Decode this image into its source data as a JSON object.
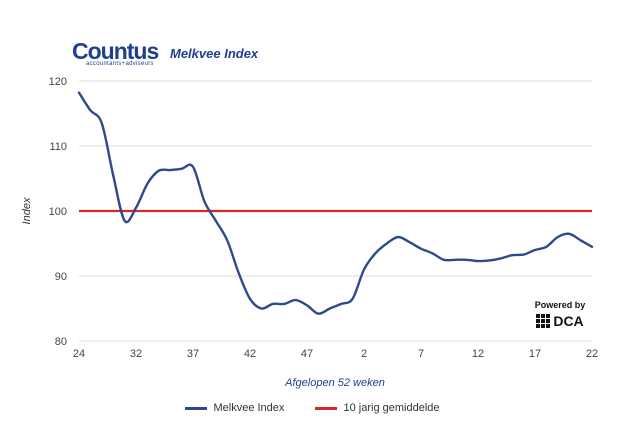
{
  "logo": {
    "word": "Countus",
    "tagline": "accountants+adviseurs"
  },
  "powered": {
    "label": "Powered by",
    "brand": "DCA",
    "icon": "dca-grid-icon"
  },
  "chart_data": {
    "type": "line",
    "title": "Melkvee Index",
    "xlabel": "Afgelopen 52 weken",
    "ylabel": "Index",
    "ylim": [
      80,
      120
    ],
    "yticks": [
      80,
      90,
      100,
      110,
      120
    ],
    "xtick_labels": [
      "24",
      "32",
      "37",
      "42",
      "47",
      "2",
      "7",
      "12",
      "17",
      "22"
    ],
    "grid": true,
    "legend_position": "bottom",
    "colors": {
      "index": "#2e4a8c",
      "average": "#d22a2a",
      "grid": "#dddddd"
    },
    "series": [
      {
        "name": "Melkvee Index",
        "values": [
          118.2,
          115.5,
          113.5,
          105.5,
          98.5,
          100.5,
          104.2,
          106.2,
          106.3,
          106.5,
          106.8,
          101.5,
          98.5,
          95.5,
          90.5,
          86.5,
          85.0,
          85.7,
          85.7,
          86.3,
          85.5,
          84.2,
          85.0,
          85.7,
          86.5,
          91.0,
          93.5,
          95.0,
          96.0,
          95.2,
          94.2,
          93.5,
          92.5,
          92.5,
          92.5,
          92.3,
          92.4,
          92.7,
          93.2,
          93.3,
          94.0,
          94.5,
          96.0,
          96.5,
          95.5,
          94.5
        ]
      },
      {
        "name": "10 jarig gemiddelde",
        "values": [
          100,
          100
        ]
      }
    ]
  }
}
